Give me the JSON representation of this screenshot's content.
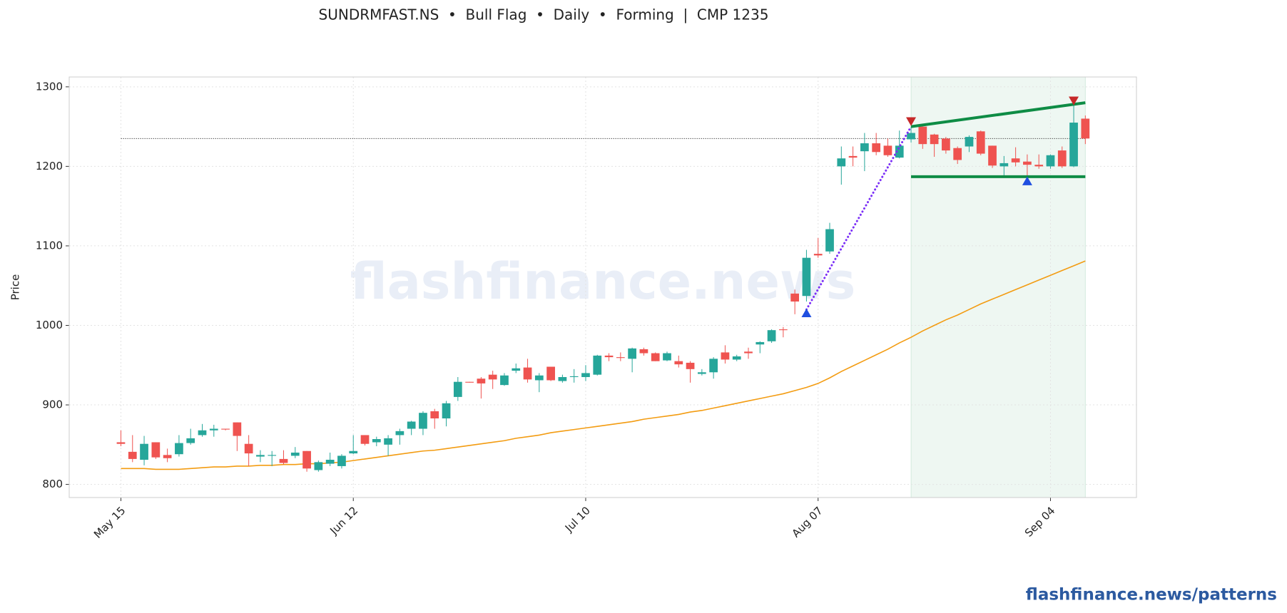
{
  "chart_data": {
    "type": "candlestick",
    "title": "SUNDRMFAST.NS  •  Bull Flag  •  Daily  •  Forming  |  CMP 1235",
    "y_label": "Price",
    "watermark": "flashfinance.news",
    "footer": "flashfinance.news/patterns",
    "categories": [
      "May 15",
      null,
      null,
      null,
      null,
      null,
      null,
      null,
      null,
      null,
      null,
      null,
      null,
      null,
      null,
      null,
      null,
      null,
      null,
      null,
      "Jun 12",
      null,
      null,
      null,
      null,
      null,
      null,
      null,
      null,
      null,
      null,
      null,
      null,
      null,
      null,
      null,
      null,
      null,
      null,
      null,
      "Jul 10",
      null,
      null,
      null,
      null,
      null,
      null,
      null,
      null,
      null,
      null,
      null,
      null,
      null,
      null,
      null,
      null,
      null,
      null,
      null,
      "Aug 07",
      null,
      null,
      null,
      null,
      null,
      null,
      null,
      null,
      null,
      null,
      null,
      null,
      null,
      null,
      null,
      null,
      null,
      null,
      null,
      "Sep 04",
      null,
      null,
      null
    ],
    "open": [
      853,
      841,
      831,
      853,
      837,
      838,
      852,
      862,
      868,
      870,
      878,
      851,
      835,
      836,
      832,
      836,
      842,
      818,
      826,
      823,
      839,
      862,
      853,
      850,
      862,
      870,
      870,
      892,
      883,
      910,
      929,
      933,
      938,
      925,
      943,
      947,
      931,
      948,
      930,
      935,
      935,
      938,
      962,
      960,
      958,
      970,
      965,
      956,
      955,
      953,
      939,
      941,
      966,
      957,
      967,
      976,
      980,
      995,
      1040,
      1037,
      1090,
      1093,
      1200,
      1213,
      1219,
      1229,
      1226,
      1211,
      1234,
      1250,
      1240,
      1235,
      1223,
      1225,
      1244,
      1226,
      1200,
      1210,
      1206,
      1202,
      1200,
      1220,
      1200,
      1260
    ],
    "high": [
      868,
      862,
      861,
      853,
      845,
      862,
      870,
      876,
      875,
      870,
      878,
      862,
      843,
      842,
      843,
      847,
      842,
      830,
      840,
      838,
      862,
      862,
      860,
      862,
      870,
      880,
      892,
      895,
      905,
      935,
      929,
      935,
      943,
      940,
      952,
      958,
      940,
      948,
      938,
      945,
      950,
      963,
      965,
      966,
      972,
      972,
      966,
      967,
      962,
      955,
      945,
      960,
      975,
      963,
      972,
      980,
      995,
      998,
      1045,
      1095,
      1110,
      1129,
      1225,
      1225,
      1242,
      1242,
      1235,
      1245,
      1250,
      1250,
      1241,
      1237,
      1225,
      1239,
      1245,
      1226,
      1213,
      1224,
      1215,
      1215,
      1215,
      1225,
      1282,
      1264
    ],
    "low": [
      848,
      828,
      824,
      832,
      828,
      835,
      850,
      860,
      860,
      868,
      842,
      823,
      828,
      823,
      825,
      833,
      816,
      816,
      823,
      820,
      838,
      849,
      848,
      836,
      850,
      862,
      862,
      870,
      873,
      905,
      928,
      908,
      920,
      924,
      940,
      928,
      916,
      930,
      928,
      928,
      930,
      937,
      955,
      955,
      941,
      962,
      955,
      955,
      947,
      928,
      937,
      933,
      952,
      955,
      958,
      965,
      978,
      985,
      1014,
      1030,
      1085,
      1090,
      1177,
      1200,
      1194,
      1214,
      1212,
      1210,
      1230,
      1222,
      1212,
      1216,
      1203,
      1218,
      1214,
      1198,
      1188,
      1200,
      1188,
      1197,
      1197,
      1198,
      1199,
      1228
    ],
    "close": [
      851,
      832,
      851,
      834,
      833,
      852,
      858,
      868,
      870,
      869,
      861,
      839,
      837,
      837,
      827,
      840,
      820,
      828,
      831,
      836,
      842,
      851,
      857,
      858,
      867,
      879,
      890,
      883,
      902,
      929,
      928,
      927,
      932,
      937,
      946,
      932,
      937,
      931,
      935,
      936,
      940,
      962,
      960,
      959,
      971,
      965,
      955,
      965,
      951,
      945,
      941,
      958,
      957,
      961,
      965,
      979,
      994,
      994,
      1030,
      1085,
      1088,
      1121,
      1210,
      1211,
      1229,
      1218,
      1214,
      1226,
      1242,
      1228,
      1228,
      1220,
      1208,
      1237,
      1216,
      1201,
      1204,
      1205,
      1202,
      1200,
      1214,
      1200,
      1255,
      1235
    ],
    "up_color": "#26a69a",
    "down_color": "#ef5350",
    "ma": {
      "color": "#f39c12",
      "values": [
        820,
        820,
        820,
        819,
        819,
        819,
        820,
        821,
        822,
        822,
        823,
        823,
        824,
        824,
        825,
        825,
        826,
        826,
        827,
        828,
        830,
        832,
        834,
        836,
        838,
        840,
        842,
        843,
        845,
        847,
        849,
        851,
        853,
        855,
        858,
        860,
        862,
        865,
        867,
        869,
        871,
        873,
        875,
        877,
        879,
        882,
        884,
        886,
        888,
        891,
        893,
        896,
        899,
        902,
        905,
        908,
        911,
        914,
        918,
        922,
        927,
        934,
        942,
        949,
        956,
        963,
        970,
        978,
        985,
        993,
        1000,
        1007,
        1013,
        1020,
        1027,
        1033,
        1039,
        1045,
        1051,
        1057,
        1063,
        1069,
        1075,
        1081
      ]
    },
    "cmp_level": 1235,
    "flag_x": [
      68,
      83
    ],
    "flag_upper": [
      1250,
      1280
    ],
    "flag_lower": [
      1187,
      1187
    ],
    "flag_color": "#0e8c45",
    "pole_x": [
      59,
      68
    ],
    "pole": [
      1020,
      1250
    ],
    "pole_color": "#7b2ff7",
    "markers": [
      {
        "x": 59,
        "y": 1015,
        "shape": "up",
        "color": "#1f4fe0"
      },
      {
        "x": 68,
        "y": 1257,
        "shape": "down",
        "color": "#c62828"
      },
      {
        "x": 78,
        "y": 1181,
        "shape": "up",
        "color": "#1f4fe0"
      },
      {
        "x": 82,
        "y": 1283,
        "shape": "down",
        "color": "#c62828"
      }
    ],
    "xlim": [
      -4.45,
      87.4
    ],
    "ylim": [
      783.5,
      1312.4
    ],
    "yticks": [
      800,
      900,
      1000,
      1100,
      1200,
      1300
    ],
    "grid": true
  }
}
